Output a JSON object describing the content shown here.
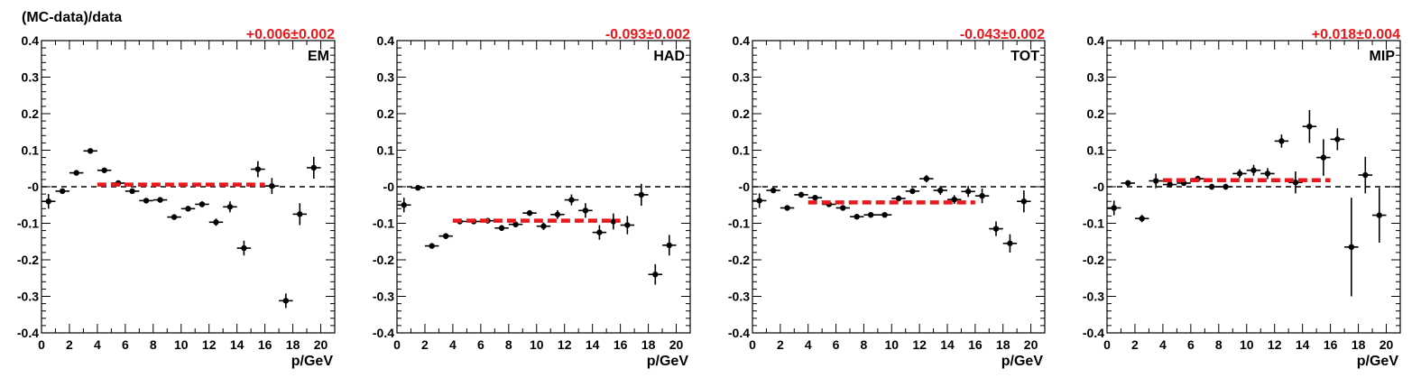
{
  "figure": {
    "ylabel": "(MC-data)/data",
    "colors": {
      "fit": "#e8181c",
      "points": "#000000",
      "zero_line": "#000000"
    }
  },
  "chart_data": [
    {
      "type": "scatter",
      "label": "EM",
      "fit_text": "+0.006±0.002",
      "fit": {
        "value": 0.006,
        "x_range": [
          4,
          16
        ]
      },
      "xlabel": "p/GeV",
      "xlim": [
        0,
        21
      ],
      "ylim": [
        -0.4,
        0.4
      ],
      "x_ticks": [
        "0",
        "2",
        "4",
        "6",
        "8",
        "10",
        "12",
        "14",
        "16",
        "18",
        "20"
      ],
      "y_ticks": [
        "-0.4",
        "-0.3",
        "-0.2",
        "-0.1",
        "-0",
        "0.1",
        "0.2",
        "0.3",
        "0.4"
      ],
      "points": [
        {
          "x": 0.5,
          "y": -0.04,
          "err": 0.02
        },
        {
          "x": 1.5,
          "y": -0.012,
          "err": 0.005
        },
        {
          "x": 2.5,
          "y": 0.038,
          "err": 0.005
        },
        {
          "x": 3.5,
          "y": 0.098,
          "err": 0.005
        },
        {
          "x": 4.5,
          "y": 0.045,
          "err": 0.005
        },
        {
          "x": 5.5,
          "y": 0.01,
          "err": 0.005
        },
        {
          "x": 6.5,
          "y": -0.012,
          "err": 0.005
        },
        {
          "x": 7.5,
          "y": -0.038,
          "err": 0.005
        },
        {
          "x": 8.5,
          "y": -0.036,
          "err": 0.005
        },
        {
          "x": 9.5,
          "y": -0.083,
          "err": 0.005
        },
        {
          "x": 10.5,
          "y": -0.06,
          "err": 0.005
        },
        {
          "x": 11.5,
          "y": -0.048,
          "err": 0.008
        },
        {
          "x": 12.5,
          "y": -0.097,
          "err": 0.01
        },
        {
          "x": 13.5,
          "y": -0.055,
          "err": 0.015
        },
        {
          "x": 14.5,
          "y": -0.168,
          "err": 0.02
        },
        {
          "x": 15.5,
          "y": 0.048,
          "err": 0.022
        },
        {
          "x": 16.5,
          "y": 0.002,
          "err": 0.022
        },
        {
          "x": 17.5,
          "y": -0.312,
          "err": 0.02
        },
        {
          "x": 18.5,
          "y": -0.075,
          "err": 0.03
        },
        {
          "x": 19.5,
          "y": 0.052,
          "err": 0.03
        }
      ]
    },
    {
      "type": "scatter",
      "label": "HAD",
      "fit_text": "-0.093±0.002",
      "fit": {
        "value": -0.093,
        "x_range": [
          4,
          16
        ]
      },
      "xlabel": "p/GeV",
      "xlim": [
        0,
        21
      ],
      "ylim": [
        -0.4,
        0.4
      ],
      "x_ticks": [
        "0",
        "2",
        "4",
        "6",
        "8",
        "10",
        "12",
        "14",
        "16",
        "18",
        "20"
      ],
      "y_ticks": [
        "-0.4",
        "-0.3",
        "-0.2",
        "-0.1",
        "-0",
        "0.1",
        "0.2",
        "0.3",
        "0.4"
      ],
      "points": [
        {
          "x": 0.5,
          "y": -0.05,
          "err": 0.02
        },
        {
          "x": 1.5,
          "y": -0.003,
          "err": 0.005
        },
        {
          "x": 2.5,
          "y": -0.162,
          "err": 0.005
        },
        {
          "x": 3.5,
          "y": -0.135,
          "err": 0.008
        },
        {
          "x": 4.5,
          "y": -0.095,
          "err": 0.005
        },
        {
          "x": 5.5,
          "y": -0.095,
          "err": 0.005
        },
        {
          "x": 6.5,
          "y": -0.093,
          "err": 0.005
        },
        {
          "x": 7.5,
          "y": -0.113,
          "err": 0.008
        },
        {
          "x": 8.5,
          "y": -0.103,
          "err": 0.008
        },
        {
          "x": 9.5,
          "y": -0.072,
          "err": 0.008
        },
        {
          "x": 10.5,
          "y": -0.108,
          "err": 0.01
        },
        {
          "x": 11.5,
          "y": -0.076,
          "err": 0.012
        },
        {
          "x": 12.5,
          "y": -0.036,
          "err": 0.015
        },
        {
          "x": 13.5,
          "y": -0.065,
          "err": 0.02
        },
        {
          "x": 14.5,
          "y": -0.125,
          "err": 0.02
        },
        {
          "x": 15.5,
          "y": -0.095,
          "err": 0.022
        },
        {
          "x": 16.5,
          "y": -0.105,
          "err": 0.025
        },
        {
          "x": 17.5,
          "y": -0.022,
          "err": 0.03
        },
        {
          "x": 18.5,
          "y": -0.24,
          "err": 0.028
        },
        {
          "x": 19.5,
          "y": -0.16,
          "err": 0.028
        }
      ]
    },
    {
      "type": "scatter",
      "label": "TOT",
      "fit_text": "-0.043±0.002",
      "fit": {
        "value": -0.043,
        "x_range": [
          4,
          16
        ]
      },
      "xlabel": "p/GeV",
      "xlim": [
        0,
        21
      ],
      "ylim": [
        -0.4,
        0.4
      ],
      "x_ticks": [
        "0",
        "2",
        "4",
        "6",
        "8",
        "10",
        "12",
        "14",
        "16",
        "18",
        "20"
      ],
      "y_ticks": [
        "-0.4",
        "-0.3",
        "-0.2",
        "-0.1",
        "-0",
        "0.1",
        "0.2",
        "0.3",
        "0.4"
      ],
      "points": [
        {
          "x": 0.5,
          "y": -0.038,
          "err": 0.02
        },
        {
          "x": 1.5,
          "y": -0.01,
          "err": 0.005
        },
        {
          "x": 2.5,
          "y": -0.058,
          "err": 0.005
        },
        {
          "x": 3.5,
          "y": -0.022,
          "err": 0.008
        },
        {
          "x": 4.5,
          "y": -0.03,
          "err": 0.005
        },
        {
          "x": 5.5,
          "y": -0.048,
          "err": 0.005
        },
        {
          "x": 6.5,
          "y": -0.058,
          "err": 0.005
        },
        {
          "x": 7.5,
          "y": -0.082,
          "err": 0.005
        },
        {
          "x": 8.5,
          "y": -0.077,
          "err": 0.005
        },
        {
          "x": 9.5,
          "y": -0.077,
          "err": 0.005
        },
        {
          "x": 10.5,
          "y": -0.032,
          "err": 0.008
        },
        {
          "x": 11.5,
          "y": -0.012,
          "err": 0.008
        },
        {
          "x": 12.5,
          "y": 0.022,
          "err": 0.01
        },
        {
          "x": 13.5,
          "y": -0.01,
          "err": 0.012
        },
        {
          "x": 14.5,
          "y": -0.035,
          "err": 0.012
        },
        {
          "x": 15.5,
          "y": -0.013,
          "err": 0.015
        },
        {
          "x": 16.5,
          "y": -0.025,
          "err": 0.02
        },
        {
          "x": 17.5,
          "y": -0.115,
          "err": 0.02
        },
        {
          "x": 18.5,
          "y": -0.155,
          "err": 0.025
        },
        {
          "x": 19.5,
          "y": -0.04,
          "err": 0.03
        }
      ]
    },
    {
      "type": "scatter",
      "label": "MIP",
      "fit_text": "+0.018±0.004",
      "fit": {
        "value": 0.018,
        "x_range": [
          4,
          16
        ]
      },
      "xlabel": "p/GeV",
      "xlim": [
        0,
        21
      ],
      "ylim": [
        -0.4,
        0.4
      ],
      "x_ticks": [
        "0",
        "2",
        "4",
        "6",
        "8",
        "10",
        "12",
        "14",
        "16",
        "18",
        "20"
      ],
      "y_ticks": [
        "-0.4",
        "-0.3",
        "-0.2",
        "-0.1",
        "-0",
        "0.1",
        "0.2",
        "0.3",
        "0.4"
      ],
      "points": [
        {
          "x": 0.5,
          "y": -0.058,
          "err": 0.02
        },
        {
          "x": 1.5,
          "y": 0.01,
          "err": 0.008
        },
        {
          "x": 2.5,
          "y": -0.087,
          "err": 0.01
        },
        {
          "x": 3.5,
          "y": 0.016,
          "err": 0.02
        },
        {
          "x": 4.5,
          "y": 0.006,
          "err": 0.008
        },
        {
          "x": 5.5,
          "y": 0.01,
          "err": 0.008
        },
        {
          "x": 6.5,
          "y": 0.022,
          "err": 0.008
        },
        {
          "x": 7.5,
          "y": 0.0,
          "err": 0.008
        },
        {
          "x": 8.5,
          "y": 0.0,
          "err": 0.008
        },
        {
          "x": 9.5,
          "y": 0.036,
          "err": 0.012
        },
        {
          "x": 10.5,
          "y": 0.045,
          "err": 0.015
        },
        {
          "x": 11.5,
          "y": 0.036,
          "err": 0.015
        },
        {
          "x": 12.5,
          "y": 0.125,
          "err": 0.018
        },
        {
          "x": 13.5,
          "y": 0.012,
          "err": 0.03
        },
        {
          "x": 14.5,
          "y": 0.165,
          "err": 0.045
        },
        {
          "x": 15.5,
          "y": 0.08,
          "err": 0.05
        },
        {
          "x": 16.5,
          "y": 0.13,
          "err": 0.03
        },
        {
          "x": 17.5,
          "y": -0.165,
          "err": 0.135
        },
        {
          "x": 18.5,
          "y": 0.032,
          "err": 0.05
        },
        {
          "x": 19.5,
          "y": -0.078,
          "err": 0.075
        }
      ]
    }
  ]
}
